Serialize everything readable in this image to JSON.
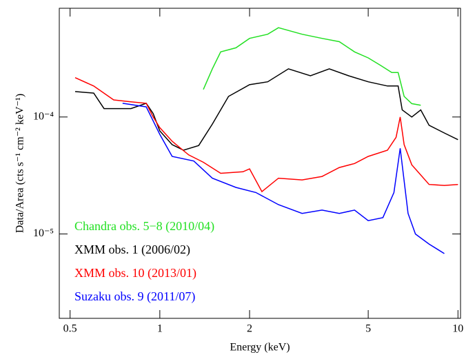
{
  "chart_data": {
    "type": "line",
    "x_label": "Energy (keV)",
    "y_label": "Data/Area (cts s⁻¹ cm⁻² keV⁻¹)",
    "xscale": "log",
    "yscale": "log",
    "xlim": [
      0.46,
      10.2
    ],
    "ylim": [
      1.9e-06,
      0.00085
    ],
    "xticks": [
      0.5,
      1,
      2,
      5,
      10
    ],
    "yticks": [
      {
        "value": 1e-05,
        "label": "10⁻⁵"
      },
      {
        "value": 0.0001,
        "label": "10⁻⁴"
      }
    ],
    "legend": "lower left",
    "series": [
      {
        "name": "Chandra obs. 5−8 (2010/04)",
        "color": "#22e022",
        "x": [
          1.4,
          1.5,
          1.6,
          1.8,
          2.0,
          2.3,
          2.5,
          3.0,
          3.5,
          4.0,
          4.5,
          5.0,
          5.5,
          6.0,
          6.3,
          6.6,
          7.0,
          7.5
        ],
        "values": [
          0.000172,
          0.000258,
          0.00036,
          0.00039,
          0.00047,
          0.00051,
          0.00058,
          0.00051,
          0.00047,
          0.00044,
          0.00036,
          0.00032,
          0.000276,
          0.00024,
          0.00024,
          0.00015,
          0.00013,
          0.000126
        ]
      },
      {
        "name": "XMM obs. 1 (2006/02)",
        "color": "#000000",
        "x": [
          0.52,
          0.6,
          0.65,
          0.8,
          0.9,
          0.95,
          1.0,
          1.1,
          1.2,
          1.35,
          1.5,
          1.7,
          2.0,
          2.3,
          2.7,
          3.2,
          3.7,
          4.3,
          5.0,
          5.8,
          6.3,
          6.5,
          7.0,
          7.5,
          8.0,
          9.0,
          10.0
        ],
        "values": [
          0.000165,
          0.00016,
          0.000118,
          0.000118,
          0.000131,
          0.000107,
          7.6e-05,
          5.8e-05,
          5.2e-05,
          5.7e-05,
          8.7e-05,
          0.00015,
          0.000189,
          0.0002,
          0.000258,
          0.000225,
          0.000258,
          0.000225,
          0.0002,
          0.000184,
          0.000184,
          0.000115,
          0.0001,
          0.000115,
          8.5e-05,
          7.3e-05,
          6.4e-05
        ]
      },
      {
        "name": "XMM obs. 10 (2013/01)",
        "color": "#ff0000",
        "x": [
          0.52,
          0.6,
          0.7,
          0.8,
          0.9,
          0.95,
          1.0,
          1.1,
          1.25,
          1.4,
          1.6,
          1.9,
          2.0,
          2.2,
          2.5,
          3.0,
          3.5,
          4.0,
          4.5,
          5.0,
          5.8,
          6.2,
          6.4,
          6.6,
          7.0,
          8.0,
          9.0,
          10.0
        ],
        "values": [
          0.000217,
          0.000184,
          0.00014,
          0.000135,
          0.000131,
          0.0001,
          8.1e-05,
          6.2e-05,
          4.74e-05,
          4.1e-05,
          3.3e-05,
          3.4e-05,
          3.6e-05,
          2.3e-05,
          3e-05,
          2.9e-05,
          3.1e-05,
          3.7e-05,
          4e-05,
          4.6e-05,
          5.2e-05,
          6.7e-05,
          0.0001,
          5.8e-05,
          3.9e-05,
          2.65e-05,
          2.6e-05,
          2.65e-05
        ]
      },
      {
        "name": "Suzaku obs. 9 (2011/07)",
        "color": "#0000ff",
        "x": [
          0.75,
          0.9,
          1.0,
          1.1,
          1.3,
          1.5,
          1.8,
          2.1,
          2.5,
          3.0,
          3.5,
          4.0,
          4.5,
          5.0,
          5.6,
          6.1,
          6.4,
          6.8,
          7.2,
          8.0,
          9.0
        ],
        "values": [
          0.000131,
          0.000122,
          7.1e-05,
          4.6e-05,
          4.2e-05,
          3e-05,
          2.5e-05,
          2.26e-05,
          1.78e-05,
          1.5e-05,
          1.6e-05,
          1.5e-05,
          1.6e-05,
          1.3e-05,
          1.38e-05,
          2.26e-05,
          5.4e-05,
          1.5e-05,
          1e-05,
          8.2e-06,
          6.8e-06
        ]
      }
    ]
  }
}
